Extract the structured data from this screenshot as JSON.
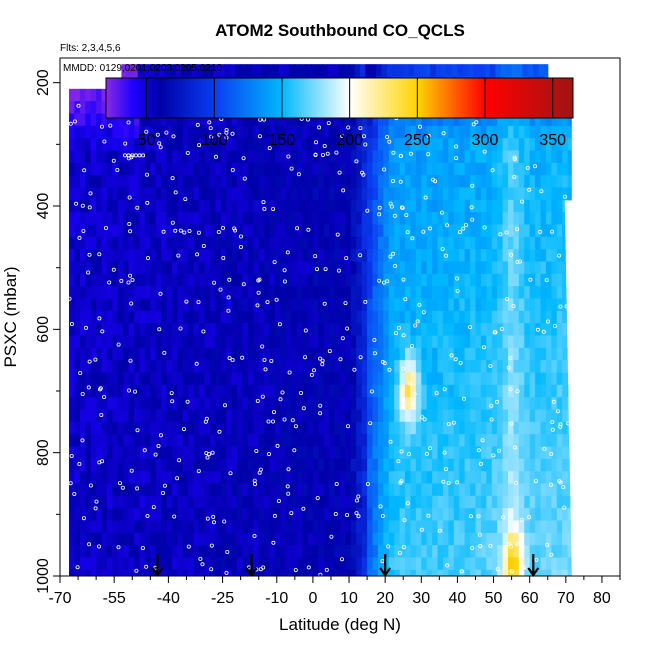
{
  "chart_data": {
    "type": "heatmap",
    "title": "ATOM2 Southbound CO_QCLS",
    "flights_label": "Flts: 2,3,4,5,6",
    "dates_label": "MMDD: 0129,0201,0203,0205,0210",
    "xlabel": "Latitude (deg N)",
    "ylabel": "PSXC (mbar)",
    "xlim": [
      -70,
      85
    ],
    "ylim": [
      1000,
      160
    ],
    "x_ticks": [
      -70,
      -55,
      -40,
      -25,
      -10,
      0,
      10,
      20,
      30,
      40,
      50,
      60,
      70,
      80
    ],
    "y_ticks": [
      200,
      400,
      600,
      800,
      1000
    ],
    "colorbar": {
      "range": [
        20,
        365
      ],
      "ticks": [
        50,
        100,
        150,
        200,
        250,
        300,
        350
      ],
      "stops": [
        {
          "v": 20,
          "color": "#8a2be2"
        },
        {
          "v": 40,
          "color": "#1e00ff"
        },
        {
          "v": 60,
          "color": "#0000a8"
        },
        {
          "v": 100,
          "color": "#0a3cf0"
        },
        {
          "v": 150,
          "color": "#00b8ff"
        },
        {
          "v": 200,
          "color": "#ffffff"
        },
        {
          "v": 250,
          "color": "#ffd400"
        },
        {
          "v": 300,
          "color": "#ff0000"
        },
        {
          "v": 365,
          "color": "#a01414"
        }
      ]
    },
    "profile_latitudes": [
      -43,
      -17,
      20,
      61
    ],
    "coverage": {
      "lat_range": [
        -67.5,
        71.5
      ],
      "pressure_range": [
        170,
        1000
      ]
    },
    "hotspots": [
      {
        "lat": 26.5,
        "pressure": 700,
        "value": 230
      },
      {
        "lat": 55.5,
        "pressure": 980,
        "value": 215
      }
    ]
  }
}
